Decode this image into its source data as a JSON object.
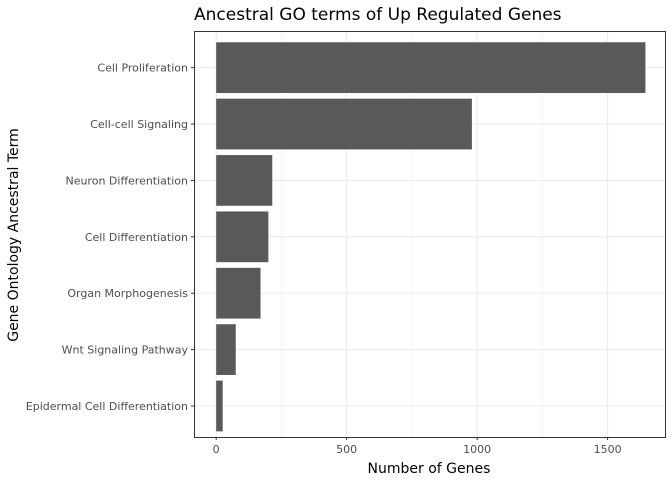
{
  "chart_data": {
    "type": "bar",
    "orientation": "horizontal",
    "title": "Ancestral GO terms of Up Regulated Genes",
    "xlabel": "Number of Genes",
    "ylabel": "Gene Ontology Ancestral Term",
    "categories": [
      "Cell Proliferation",
      "Cell-cell Signaling",
      "Neuron Differentiation",
      "Cell Differentiation",
      "Organ Morphogenesis",
      "Wnt Signaling Pathway",
      "Epidermal Cell Differentiation"
    ],
    "values": [
      1645,
      980,
      215,
      200,
      170,
      75,
      25
    ],
    "xlim": [
      -85,
      1720
    ],
    "xticks": [
      0,
      500,
      1000,
      1500
    ],
    "xtick_labels": [
      "0",
      "500",
      "1000",
      "1500"
    ],
    "grid": true,
    "bar_color": "#595959",
    "grid_color": "#ebebeb",
    "panel_border_color": "#333333"
  }
}
